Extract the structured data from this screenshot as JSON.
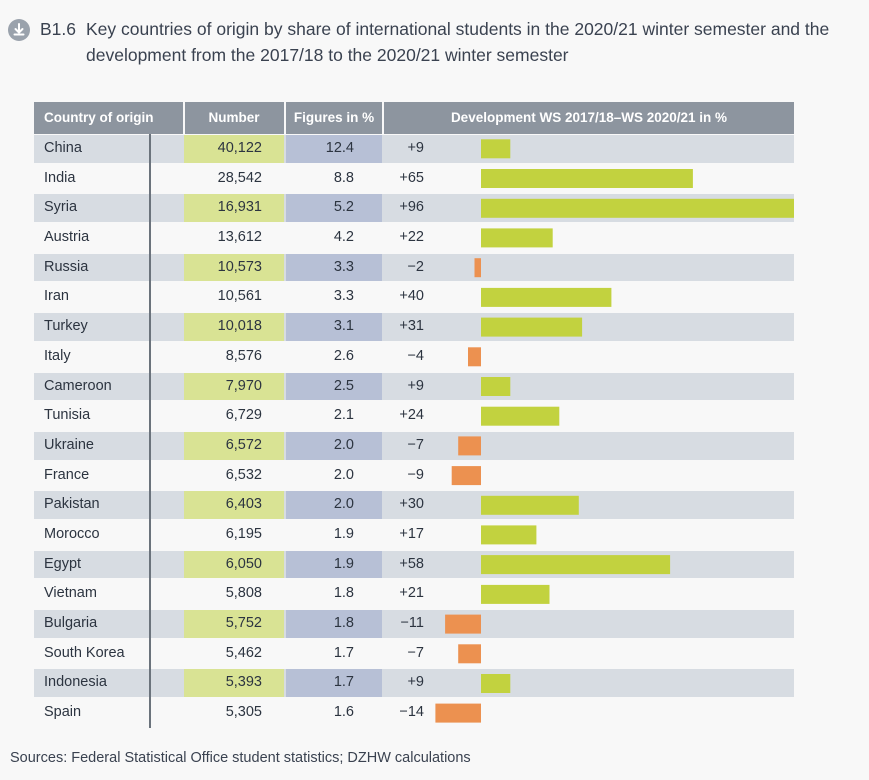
{
  "title": {
    "code": "B1.6",
    "text": "Key countries of origin by share of international students in the 2020/21 winter semester and the development from the 2017/18 to the 2020/21 winter semester"
  },
  "icons": {
    "download": "download-circle-icon"
  },
  "headers": {
    "country": "Country of origin",
    "number": "Number",
    "pct": "Figures in %",
    "dev": "Development WS 2017/18–WS 2020/21 in %"
  },
  "colors": {
    "positive": "#c2d23f",
    "negative": "#ec9150",
    "header_bg": "#8d959f",
    "number_highlight": "#d9e394",
    "pct_highlight": "#b7c0d6",
    "stripe": "#d7dce2"
  },
  "rows": [
    {
      "country": "China",
      "number": "40,122",
      "pct": "12.4",
      "dev": "+9"
    },
    {
      "country": "India",
      "number": "28,542",
      "pct": "8.8",
      "dev": "+65"
    },
    {
      "country": "Syria",
      "number": "16,931",
      "pct": "5.2",
      "dev": "+96"
    },
    {
      "country": "Austria",
      "number": "13,612",
      "pct": "4.2",
      "dev": "+22"
    },
    {
      "country": "Russia",
      "number": "10,573",
      "pct": "3.3",
      "dev": "−2"
    },
    {
      "country": "Iran",
      "number": "10,561",
      "pct": "3.3",
      "dev": "+40"
    },
    {
      "country": "Turkey",
      "number": "10,018",
      "pct": "3.1",
      "dev": "+31"
    },
    {
      "country": "Italy",
      "number": "8,576",
      "pct": "2.6",
      "dev": "−4"
    },
    {
      "country": "Cameroon",
      "number": "7,970",
      "pct": "2.5",
      "dev": "+9"
    },
    {
      "country": "Tunisia",
      "number": "6,729",
      "pct": "2.1",
      "dev": "+24"
    },
    {
      "country": "Ukraine",
      "number": "6,572",
      "pct": "2.0",
      "dev": "−7"
    },
    {
      "country": "France",
      "number": "6,532",
      "pct": "2.0",
      "dev": "−9"
    },
    {
      "country": "Pakistan",
      "number": "6,403",
      "pct": "2.0",
      "dev": "+30"
    },
    {
      "country": "Morocco",
      "number": "6,195",
      "pct": "1.9",
      "dev": "+17"
    },
    {
      "country": "Egypt",
      "number": "6,050",
      "pct": "1.9",
      "dev": "+58"
    },
    {
      "country": "Vietnam",
      "number": "5,808",
      "pct": "1.8",
      "dev": "+21"
    },
    {
      "country": "Bulgaria",
      "number": "5,752",
      "pct": "1.8",
      "dev": "−11"
    },
    {
      "country": "South Korea",
      "number": "5,462",
      "pct": "1.7",
      "dev": "−7"
    },
    {
      "country": "Indonesia",
      "number": "5,393",
      "pct": "1.7",
      "dev": "+9"
    },
    {
      "country": "Spain",
      "number": "5,305",
      "pct": "1.6",
      "dev": "−14"
    }
  ],
  "chart_data": {
    "type": "bar",
    "orientation": "horizontal",
    "title": "Development WS 2017/18–WS 2020/21 in %",
    "categories": [
      "China",
      "India",
      "Syria",
      "Austria",
      "Russia",
      "Iran",
      "Turkey",
      "Italy",
      "Cameroon",
      "Tunisia",
      "Ukraine",
      "France",
      "Pakistan",
      "Morocco",
      "Egypt",
      "Vietnam",
      "Bulgaria",
      "South Korea",
      "Indonesia",
      "Spain"
    ],
    "values": [
      9,
      65,
      96,
      22,
      -2,
      40,
      31,
      -4,
      9,
      24,
      -7,
      -9,
      30,
      17,
      58,
      21,
      -11,
      -7,
      9,
      -14
    ],
    "xlim": [
      -14,
      96
    ],
    "grid": false,
    "legend": "none"
  },
  "source": "Sources: Federal Statistical Office student statistics; DZHW calculations"
}
